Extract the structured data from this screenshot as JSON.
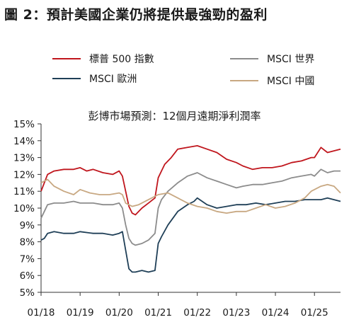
{
  "figure_title": "圖 2：預計美國企業仍將提供最強勁的盈利",
  "chart_data": {
    "type": "line",
    "title": "彭博市場預測：12個月遠期淨利潤率",
    "xlabel": "",
    "ylabel": "",
    "x_ticks": [
      "01/18",
      "01/19",
      "01/20",
      "01/21",
      "01/22",
      "01/23",
      "01/24",
      "01/25"
    ],
    "xlim": [
      "2018-01",
      "2025-09"
    ],
    "y_ticks": [
      "5%",
      "6%",
      "7%",
      "8%",
      "9%",
      "10%",
      "11%",
      "12%",
      "13%",
      "14%",
      "15%"
    ],
    "ylim": [
      5,
      15
    ],
    "grid": false,
    "legend_position": "top",
    "series": [
      {
        "name": "標普 500 指數",
        "color": "#c0161d",
        "x": [
          "2018-01",
          "2018-02",
          "2018-03",
          "2018-05",
          "2018-08",
          "2018-11",
          "2019-01",
          "2019-03",
          "2019-05",
          "2019-08",
          "2019-11",
          "2020-01",
          "2020-02",
          "2020-03",
          "2020-04",
          "2020-05",
          "2020-06",
          "2020-08",
          "2020-10",
          "2020-12",
          "2021-01",
          "2021-02",
          "2021-03",
          "2021-05",
          "2021-07",
          "2021-10",
          "2022-01",
          "2022-04",
          "2022-07",
          "2022-10",
          "2023-01",
          "2023-03",
          "2023-06",
          "2023-09",
          "2023-12",
          "2024-03",
          "2024-06",
          "2024-09",
          "2024-12",
          "2025-01",
          "2025-03",
          "2025-05",
          "2025-07",
          "2025-09"
        ],
        "y": [
          11.0,
          11.5,
          12.0,
          12.2,
          12.3,
          12.3,
          12.4,
          12.2,
          12.3,
          12.1,
          12.0,
          12.2,
          11.9,
          11.0,
          10.1,
          9.7,
          9.6,
          10.0,
          10.3,
          10.6,
          11.8,
          12.2,
          12.6,
          13.0,
          13.5,
          13.6,
          13.7,
          13.5,
          13.3,
          12.9,
          12.7,
          12.5,
          12.3,
          12.4,
          12.4,
          12.5,
          12.7,
          12.8,
          13.0,
          13.0,
          13.6,
          13.3,
          13.4,
          13.5
        ]
      },
      {
        "name": "MSCI 世界",
        "color": "#8c8c8c",
        "x": [
          "2018-01",
          "2018-02",
          "2018-03",
          "2018-05",
          "2018-08",
          "2018-11",
          "2019-01",
          "2019-05",
          "2019-08",
          "2019-11",
          "2020-01",
          "2020-02",
          "2020-03",
          "2020-04",
          "2020-05",
          "2020-06",
          "2020-08",
          "2020-10",
          "2020-12",
          "2021-01",
          "2021-02",
          "2021-04",
          "2021-07",
          "2021-10",
          "2022-01",
          "2022-04",
          "2022-07",
          "2022-10",
          "2023-01",
          "2023-03",
          "2023-06",
          "2023-09",
          "2023-12",
          "2024-03",
          "2024-06",
          "2024-09",
          "2024-12",
          "2025-01",
          "2025-03",
          "2025-05",
          "2025-07",
          "2025-09"
        ],
        "y": [
          9.4,
          9.8,
          10.2,
          10.3,
          10.3,
          10.4,
          10.3,
          10.3,
          10.2,
          10.2,
          10.3,
          10.0,
          9.0,
          8.2,
          7.9,
          7.8,
          7.9,
          8.1,
          8.5,
          10.0,
          10.5,
          11.0,
          11.5,
          11.9,
          12.1,
          11.8,
          11.6,
          11.4,
          11.2,
          11.3,
          11.4,
          11.4,
          11.5,
          11.6,
          11.8,
          11.9,
          12.0,
          11.9,
          12.3,
          12.1,
          12.2,
          12.2
        ]
      },
      {
        "name": "MSCI 歐洲",
        "color": "#1f3f57",
        "x": [
          "2018-01",
          "2018-02",
          "2018-03",
          "2018-05",
          "2018-08",
          "2018-11",
          "2019-01",
          "2019-05",
          "2019-08",
          "2019-11",
          "2020-01",
          "2020-02",
          "2020-03",
          "2020-04",
          "2020-05",
          "2020-06",
          "2020-08",
          "2020-10",
          "2020-12",
          "2021-01",
          "2021-02",
          "2021-04",
          "2021-07",
          "2021-10",
          "2021-12",
          "2022-01",
          "2022-04",
          "2022-07",
          "2022-10",
          "2023-01",
          "2023-04",
          "2023-07",
          "2023-10",
          "2024-01",
          "2024-04",
          "2024-07",
          "2024-10",
          "2025-01",
          "2025-03",
          "2025-05",
          "2025-07",
          "2025-09"
        ],
        "y": [
          8.1,
          8.2,
          8.5,
          8.6,
          8.5,
          8.5,
          8.6,
          8.5,
          8.5,
          8.4,
          8.5,
          8.6,
          7.5,
          6.4,
          6.2,
          6.2,
          6.3,
          6.2,
          6.3,
          7.9,
          8.3,
          9.0,
          9.8,
          10.2,
          10.4,
          10.6,
          10.2,
          10.0,
          10.1,
          10.2,
          10.2,
          10.3,
          10.2,
          10.3,
          10.4,
          10.4,
          10.5,
          10.5,
          10.5,
          10.6,
          10.5,
          10.4
        ]
      },
      {
        "name": "MSCI 中國",
        "color": "#c8a882",
        "x": [
          "2018-01",
          "2018-03",
          "2018-05",
          "2018-08",
          "2018-11",
          "2019-01",
          "2019-04",
          "2019-07",
          "2019-10",
          "2020-01",
          "2020-02",
          "2020-03",
          "2020-05",
          "2020-07",
          "2020-10",
          "2021-01",
          "2021-04",
          "2021-07",
          "2021-10",
          "2022-01",
          "2022-04",
          "2022-07",
          "2022-10",
          "2023-01",
          "2023-04",
          "2023-07",
          "2023-10",
          "2024-01",
          "2024-04",
          "2024-07",
          "2024-10",
          "2024-12",
          "2025-03",
          "2025-05",
          "2025-07",
          "2025-09"
        ],
        "y": [
          11.5,
          11.7,
          11.3,
          11.0,
          10.8,
          11.1,
          10.9,
          10.8,
          10.8,
          10.9,
          10.8,
          10.3,
          10.1,
          10.2,
          10.5,
          10.8,
          10.9,
          10.6,
          10.3,
          10.1,
          10.0,
          9.8,
          9.7,
          9.8,
          9.8,
          10.0,
          10.2,
          10.0,
          10.1,
          10.3,
          10.6,
          11.0,
          11.3,
          11.4,
          11.3,
          10.9
        ]
      }
    ]
  }
}
